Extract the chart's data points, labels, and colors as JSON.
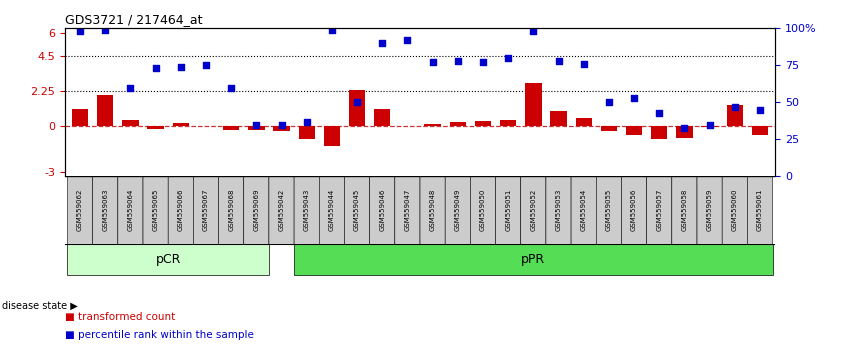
{
  "title": "GDS3721 / 217464_at",
  "samples": [
    "GSM559062",
    "GSM559063",
    "GSM559064",
    "GSM559065",
    "GSM559066",
    "GSM559067",
    "GSM559068",
    "GSM559069",
    "GSM559042",
    "GSM559043",
    "GSM559044",
    "GSM559045",
    "GSM559046",
    "GSM559047",
    "GSM559048",
    "GSM559049",
    "GSM559050",
    "GSM559051",
    "GSM559052",
    "GSM559053",
    "GSM559054",
    "GSM559055",
    "GSM559056",
    "GSM559057",
    "GSM559058",
    "GSM559059",
    "GSM559060",
    "GSM559061"
  ],
  "bar_values": [
    1.1,
    2.0,
    0.35,
    -0.25,
    0.15,
    -0.05,
    -0.3,
    -0.3,
    -0.35,
    -0.9,
    -1.35,
    2.3,
    1.1,
    -0.05,
    0.1,
    0.25,
    0.3,
    0.35,
    2.75,
    0.95,
    0.5,
    -0.35,
    -0.6,
    -0.85,
    -0.8,
    -0.1,
    1.3,
    -0.6
  ],
  "dot_pct": [
    98,
    99,
    60,
    73,
    74,
    75,
    60,
    35,
    35,
    37,
    99,
    50,
    90,
    92,
    77,
    78,
    77,
    80,
    98,
    78,
    76,
    50,
    53,
    43,
    33,
    35,
    47,
    45
  ],
  "bar_color": "#cc0000",
  "dot_color": "#0000cc",
  "zero_line_color": "#cc3333",
  "yticks_left": [
    -3,
    0,
    2.25,
    4.5,
    6
  ],
  "ytick_labels_left": [
    "-3",
    "0",
    "2.25",
    "4.5",
    "6"
  ],
  "yticks_right_pct": [
    0,
    25,
    50,
    75,
    100
  ],
  "ytick_labels_right": [
    "0",
    "25",
    "50",
    "75",
    "100%"
  ],
  "ylim_left": [
    -3.3,
    6.3
  ],
  "hlines": [
    4.5,
    2.25
  ],
  "pcr_count": 8,
  "ppr_count": 20,
  "pCR_color": "#ccffcc",
  "pPR_color": "#55dd55",
  "disease_state_label": "disease state"
}
